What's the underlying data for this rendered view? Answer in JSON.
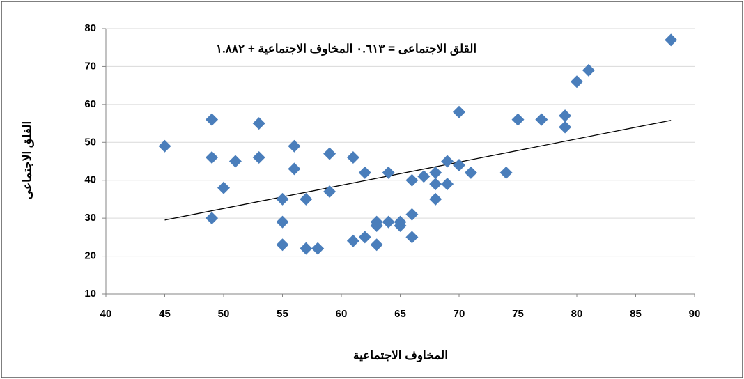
{
  "chart_data": {
    "type": "scatter",
    "annotation": "القلق الاجتماعى = ٠.٦١٣ المخاوف الاجتماعية + ١.٨٨٢",
    "x_label": "المخاوف الاجتماعية",
    "y_label": "القلق الاجتماعى",
    "xlim": [
      40,
      90
    ],
    "xticks": [
      40,
      45,
      50,
      55,
      60,
      65,
      70,
      75,
      80,
      85,
      90
    ],
    "ylim": [
      10,
      80
    ],
    "yticks": [
      10,
      20,
      30,
      40,
      50,
      60,
      70,
      80
    ],
    "grid": true,
    "series": [
      {
        "color": "#4a7ebb",
        "x": [
          45,
          49,
          49,
          49,
          50,
          51,
          53,
          53,
          55,
          55,
          55,
          56,
          56,
          57,
          57,
          58,
          59,
          59,
          61,
          61,
          62,
          62,
          63,
          63,
          63,
          64,
          64,
          65,
          65,
          66,
          66,
          66,
          67,
          68,
          68,
          68,
          69,
          69,
          70,
          70,
          71,
          74,
          75,
          77,
          79,
          79,
          80,
          81,
          88
        ],
        "values": [
          49,
          56,
          46,
          30,
          38,
          45,
          55,
          46,
          35,
          29,
          23,
          49,
          43,
          35,
          22,
          22,
          47,
          37,
          46,
          24,
          42,
          25,
          29,
          28,
          23,
          42,
          29,
          29,
          28,
          40,
          31,
          25,
          41,
          42,
          39,
          35,
          45,
          39,
          58,
          44,
          42,
          42,
          56,
          56,
          57,
          54,
          66,
          69,
          77
        ]
      }
    ],
    "trendline": {
      "color": "#000000",
      "x": [
        45,
        88
      ],
      "values": [
        29.5,
        55.8
      ]
    }
  }
}
